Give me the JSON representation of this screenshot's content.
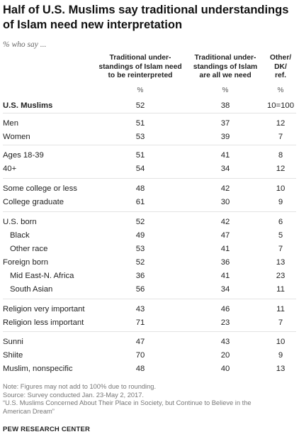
{
  "title": "Half of U.S. Muslims say traditional understandings  of Islam need new interpretation",
  "subtitle": "% who say ...",
  "chart_data": {
    "type": "table",
    "columns": [
      {
        "header": "Traditional under-\nstandings of Islam need\nto be reinterpreted",
        "unit": "%"
      },
      {
        "header": "Traditional under-\nstandings of Islam\nare all we need",
        "unit": "%"
      },
      {
        "header": "Other/\nDK/\nref.",
        "unit": "%"
      }
    ],
    "rows": [
      {
        "label": "U.S. Muslims",
        "bold": true,
        "values": [
          "52",
          "38",
          "10=100"
        ]
      },
      {
        "label": "Men",
        "values": [
          "51",
          "37",
          "12"
        ]
      },
      {
        "label": "Women",
        "values": [
          "53",
          "39",
          "7"
        ]
      },
      {
        "label": "Ages 18-39",
        "values": [
          "51",
          "41",
          "8"
        ]
      },
      {
        "label": "40+",
        "values": [
          "54",
          "34",
          "12"
        ]
      },
      {
        "label": "Some college or less",
        "values": [
          "48",
          "42",
          "10"
        ]
      },
      {
        "label": "College graduate",
        "values": [
          "61",
          "30",
          "9"
        ]
      },
      {
        "label": "U.S. born",
        "values": [
          "52",
          "42",
          "6"
        ]
      },
      {
        "label": "Black",
        "indent": true,
        "values": [
          "49",
          "47",
          "5"
        ]
      },
      {
        "label": "Other race",
        "indent": true,
        "values": [
          "53",
          "41",
          "7"
        ]
      },
      {
        "label": "Foreign born",
        "values": [
          "52",
          "36",
          "13"
        ]
      },
      {
        "label": "Mid East-N. Africa",
        "indent": true,
        "values": [
          "36",
          "41",
          "23"
        ]
      },
      {
        "label": "South Asian",
        "indent": true,
        "values": [
          "56",
          "34",
          "11"
        ]
      },
      {
        "label": "Religion very important",
        "values": [
          "43",
          "46",
          "11"
        ]
      },
      {
        "label": "Religion less important",
        "values": [
          "71",
          "23",
          "7"
        ]
      },
      {
        "label": "Sunni",
        "values": [
          "47",
          "43",
          "10"
        ]
      },
      {
        "label": "Shiite",
        "values": [
          "70",
          "20",
          "9"
        ]
      },
      {
        "label": "Muslim, nonspecific",
        "values": [
          "48",
          "40",
          "13"
        ]
      }
    ]
  },
  "notes": [
    "Note: Figures may not add to 100% due to rounding.",
    "Source: Survey conducted Jan. 23-May 2, 2017.",
    "“U.S. Muslims Concerned About Their Place in Society, but Continue to Believe in the",
    "American Dream”"
  ],
  "source_org": "PEW RESEARCH CENTER"
}
